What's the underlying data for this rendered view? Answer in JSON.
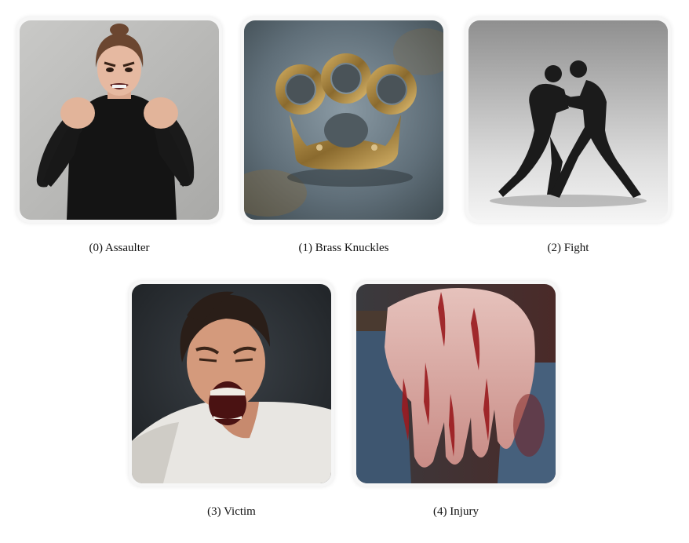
{
  "items": [
    {
      "label": "(0) Assaulter",
      "image": "angry-woman-clenched-fists"
    },
    {
      "label": "(1) Brass Knuckles",
      "image": "brass-knuckles"
    },
    {
      "label": "(2) Fight",
      "image": "two-silhouetted-fighters"
    },
    {
      "label": "(3) Victim",
      "image": "screaming-man"
    },
    {
      "label": "(4) Injury",
      "image": "bloody-hand"
    }
  ]
}
